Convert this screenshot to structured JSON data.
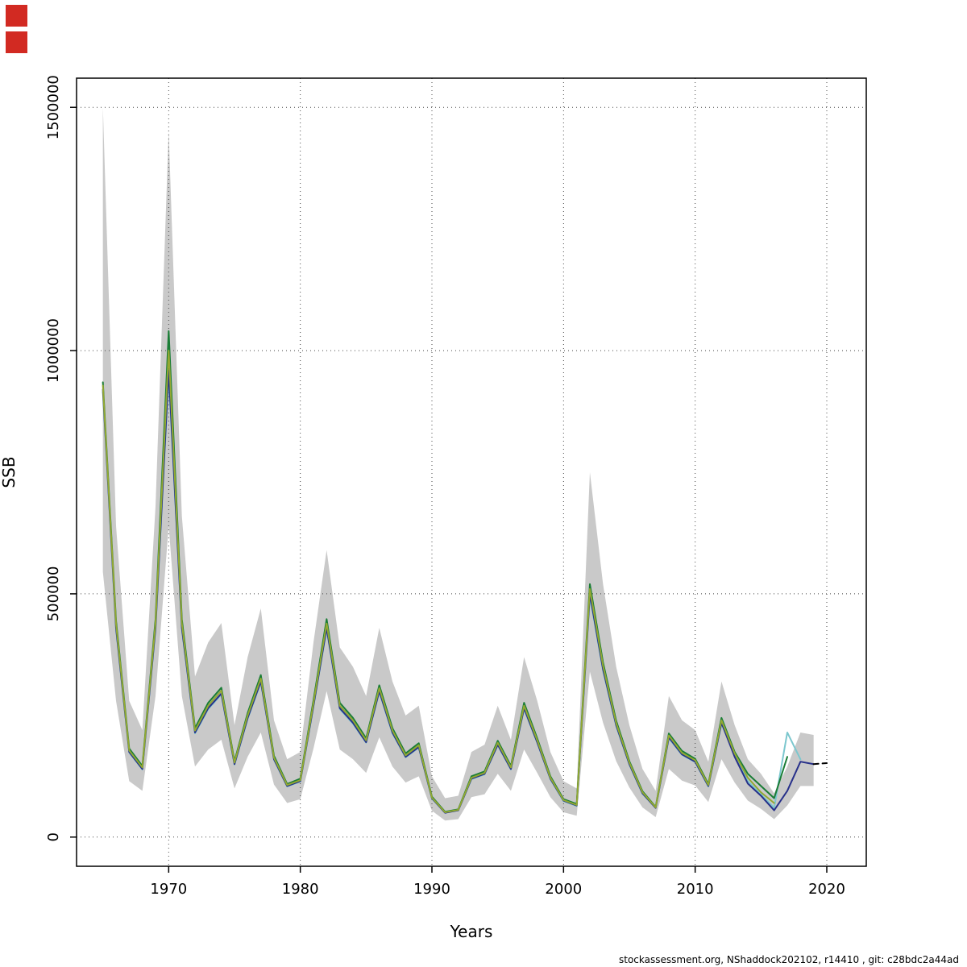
{
  "page": {
    "background": "#ffffff"
  },
  "markers": {
    "color": "#d22a22"
  },
  "footer": {
    "text": "stockassessment.org, NShaddock202102, r14410 , git: c28bdc2a44ad"
  },
  "chart_data": {
    "type": "line",
    "title": "",
    "xlabel": "Years",
    "ylabel": "SSB",
    "xlim": [
      1963,
      2023
    ],
    "ylim": [
      -60000,
      1560000
    ],
    "x_ticks": [
      1970,
      1980,
      1990,
      2000,
      2010,
      2020
    ],
    "y_ticks": [
      0,
      500000,
      1000000,
      1500000
    ],
    "grid": "dotted",
    "grid_color": "#444444",
    "band": {
      "name": "confidence-band",
      "color": "#c9c9c9",
      "start_year": 1965,
      "upper": [
        1500000,
        640000,
        280000,
        220000,
        680000,
        1450000,
        660000,
        330000,
        400000,
        440000,
        230000,
        370000,
        470000,
        240000,
        160000,
        175000,
        400000,
        590000,
        390000,
        350000,
        290000,
        430000,
        320000,
        250000,
        270000,
        125000,
        80000,
        85000,
        175000,
        190000,
        270000,
        200000,
        370000,
        280000,
        175000,
        115000,
        100000,
        750000,
        520000,
        350000,
        230000,
        140000,
        95000,
        290000,
        240000,
        220000,
        155000,
        320000,
        230000,
        160000,
        130000,
        90000,
        145000,
        215000,
        210000
      ],
      "lower": [
        545000,
        280000,
        115000,
        95000,
        290000,
        640000,
        290000,
        145000,
        180000,
        200000,
        100000,
        165000,
        215000,
        108000,
        70000,
        78000,
        182000,
        300000,
        180000,
        160000,
        132000,
        205000,
        145000,
        112000,
        125000,
        54000,
        34000,
        37000,
        82000,
        88000,
        130000,
        95000,
        180000,
        132000,
        82000,
        51000,
        44000,
        340000,
        235000,
        156000,
        102000,
        61000,
        41000,
        140000,
        116000,
        106000,
        72000,
        160000,
        112000,
        75000,
        58000,
        37000,
        65000,
        105000,
        105000
      ]
    },
    "series": [
      {
        "name": "retro-run-ending-2018",
        "color": "#7cc7ce",
        "start_year": 1965,
        "values": [
          915000,
          427000,
          174000,
          139000,
          427000,
          950000,
          427000,
          213000,
          263000,
          293000,
          149000,
          243000,
          318000,
          159000,
          104000,
          114000,
          268000,
          427000,
          263000,
          233000,
          194000,
          298000,
          213000,
          164000,
          184000,
          79000,
          50000,
          55000,
          119000,
          129000,
          189000,
          139000,
          263000,
          194000,
          119000,
          74000,
          64000,
          495000,
          342000,
          228000,
          149000,
          89000,
          60000,
          203000,
          169000,
          154000,
          104000,
          233000,
          168000,
          115000,
          88000,
          60000,
          215000,
          160000
        ]
      },
      {
        "name": "base-run-ending-2019",
        "color": "#27308a",
        "start_year": 1965,
        "values": [
          920000,
          430000,
          175000,
          140000,
          430000,
          960000,
          430000,
          215000,
          265000,
          295000,
          150000,
          245000,
          320000,
          160000,
          105000,
          115000,
          270000,
          430000,
          265000,
          235000,
          195000,
          300000,
          215000,
          165000,
          185000,
          80000,
          50000,
          55000,
          120000,
          130000,
          190000,
          140000,
          265000,
          195000,
          120000,
          75000,
          65000,
          500000,
          345000,
          230000,
          150000,
          90000,
          60000,
          205000,
          170000,
          155000,
          105000,
          235000,
          165000,
          110000,
          85000,
          55000,
          95000,
          155000,
          150000
        ]
      },
      {
        "name": "retro-run-ending-2017",
        "color": "#1a7d36",
        "start_year": 1965,
        "values": [
          935000,
          445000,
          182000,
          146000,
          448000,
          1040000,
          448000,
          224000,
          276000,
          307000,
          156000,
          255000,
          333000,
          167000,
          109000,
          120000,
          281000,
          448000,
          276000,
          245000,
          203000,
          312000,
          224000,
          172000,
          193000,
          83000,
          52000,
          57000,
          125000,
          135000,
          198000,
          146000,
          276000,
          203000,
          125000,
          78000,
          68000,
          520000,
          359000,
          239000,
          156000,
          94000,
          62000,
          213000,
          177000,
          161000,
          109000,
          245000,
          175000,
          130000,
          105000,
          80000,
          165000
        ]
      },
      {
        "name": "retro-run-ending-2016",
        "color": "#93a832",
        "start_year": 1965,
        "values": [
          928000,
          438000,
          178000,
          143000,
          439000,
          1000000,
          439000,
          219000,
          270000,
          301000,
          153000,
          250000,
          326000,
          163000,
          107000,
          117000,
          275000,
          439000,
          270000,
          240000,
          199000,
          306000,
          219000,
          168000,
          189000,
          81000,
          51000,
          56000,
          122000,
          132000,
          194000,
          143000,
          270000,
          199000,
          122000,
          76000,
          66000,
          510000,
          352000,
          234000,
          153000,
          92000,
          61000,
          209000,
          173000,
          158000,
          107000,
          240000,
          172000,
          122000,
          92000,
          70000
        ]
      },
      {
        "name": "forecast-segment",
        "color": "#000000",
        "dash": "6 5",
        "start_year": 2019,
        "values": [
          150000,
          152000
        ]
      }
    ]
  }
}
